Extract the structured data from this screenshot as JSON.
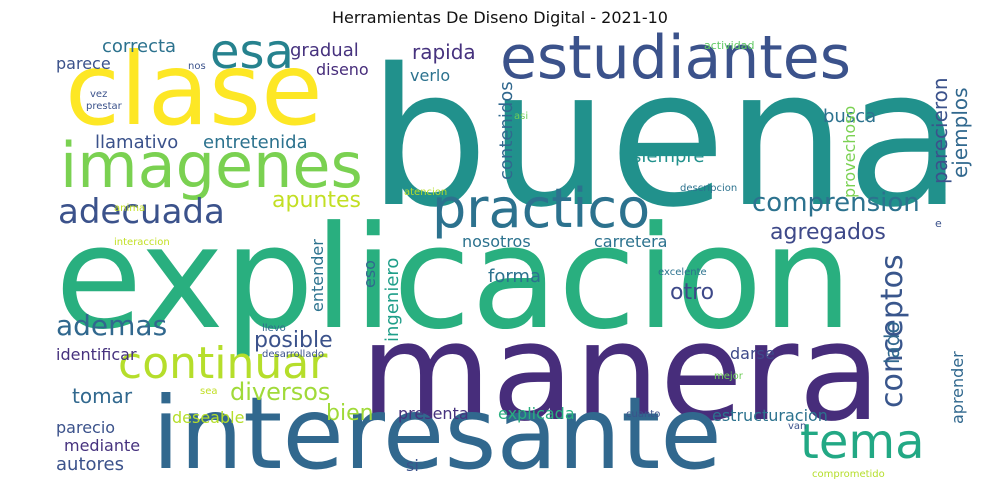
{
  "title": "Herramientas De Diseno Digital - 2021-10",
  "words": [
    {
      "text": "buena",
      "color": "#21918c"
    },
    {
      "text": "explicacion",
      "color": "#29af7f"
    },
    {
      "text": "manera",
      "color": "#472d7b"
    },
    {
      "text": "interesante",
      "color": "#31688e"
    },
    {
      "text": "clase",
      "color": "#fde725"
    },
    {
      "text": "estudiantes",
      "color": "#3b528b"
    },
    {
      "text": "imagenes",
      "color": "#7ad151"
    },
    {
      "text": "practico",
      "color": "#2c728e"
    },
    {
      "text": "esa",
      "color": "#26828e"
    },
    {
      "text": "tema",
      "color": "#22a884"
    },
    {
      "text": "continuar",
      "color": "#b5de2b"
    },
    {
      "text": "adecuada",
      "color": "#3b528b"
    },
    {
      "text": "comprension",
      "color": "#2c728e"
    },
    {
      "text": "conceptos",
      "color": "#39568c"
    },
    {
      "text": "ademas",
      "color": "#31688e"
    },
    {
      "text": "diversos",
      "color": "#a0da39"
    },
    {
      "text": "agregados",
      "color": "#3e4989"
    },
    {
      "text": "apuntes",
      "color": "#c2df23"
    },
    {
      "text": "posible",
      "color": "#3b528b"
    },
    {
      "text": "llamativo",
      "color": "#3b528b"
    },
    {
      "text": "entretenida",
      "color": "#2c728e"
    },
    {
      "text": "correcta",
      "color": "#2c728e"
    },
    {
      "text": "gradual",
      "color": "#46327e"
    },
    {
      "text": "rapida",
      "color": "#46327e"
    },
    {
      "text": "ejemplos",
      "color": "#31688e"
    },
    {
      "text": "parecieron",
      "color": "#3b528b"
    },
    {
      "text": "busca",
      "color": "#2c728e"
    },
    {
      "text": "siempre",
      "color": "#21918c"
    },
    {
      "text": "provechoso",
      "color": "#7ad151"
    },
    {
      "text": "contenidos",
      "color": "#31688e"
    },
    {
      "text": "verlo",
      "color": "#2c728e"
    },
    {
      "text": "diseno",
      "color": "#472d7b"
    },
    {
      "text": "parece",
      "color": "#3b528b"
    },
    {
      "text": "nos",
      "color": "#3b528b"
    },
    {
      "text": "actividad",
      "color": "#5ec962"
    },
    {
      "text": "vez",
      "color": "#3b528b"
    },
    {
      "text": "prestar",
      "color": "#3b528b"
    },
    {
      "text": "asi",
      "color": "#6ece58"
    },
    {
      "text": "atencion",
      "color": "#b5de2b"
    },
    {
      "text": "descripcion",
      "color": "#2c728e"
    },
    {
      "text": "anima",
      "color": "#c2df23"
    },
    {
      "text": "interaccion",
      "color": "#c2df23"
    },
    {
      "text": "e",
      "color": "#3b528b"
    },
    {
      "text": "nosotros",
      "color": "#2c728e"
    },
    {
      "text": "carretera",
      "color": "#2c728e"
    },
    {
      "text": "forma",
      "color": "#2c728e"
    },
    {
      "text": "otro",
      "color": "#3e4989"
    },
    {
      "text": "excelente",
      "color": "#2c728e"
    },
    {
      "text": "entender",
      "color": "#2c728e"
    },
    {
      "text": "eso",
      "color": "#31688e"
    },
    {
      "text": "ingeniero",
      "color": "#1f9e89"
    },
    {
      "text": "lado",
      "color": "#31688e"
    },
    {
      "text": "aprender",
      "color": "#31688e"
    },
    {
      "text": "darse",
      "color": "#3e4989"
    },
    {
      "text": "llevo",
      "color": "#31688e"
    },
    {
      "text": "desarrollado",
      "color": "#3b528b"
    },
    {
      "text": "mejor",
      "color": "#6ece58"
    },
    {
      "text": "identificar",
      "color": "#46327e"
    },
    {
      "text": "tomar",
      "color": "#31688e"
    },
    {
      "text": "sea",
      "color": "#c2df23"
    },
    {
      "text": "deseable",
      "color": "#b5de2b"
    },
    {
      "text": "bien",
      "color": "#a0da39"
    },
    {
      "text": "presenta",
      "color": "#46327e"
    },
    {
      "text": "explicada",
      "color": "#29af7f"
    },
    {
      "text": "estructuracion",
      "color": "#2c728e"
    },
    {
      "text": "cuanto",
      "color": "#3b528b"
    },
    {
      "text": "van",
      "color": "#3b528b"
    },
    {
      "text": "parecio",
      "color": "#3b528b"
    },
    {
      "text": "mediante",
      "color": "#46327e"
    },
    {
      "text": "autores",
      "color": "#3b528b"
    },
    {
      "text": "si",
      "color": "#3b528b"
    },
    {
      "text": "comprometido",
      "color": "#b5de2b"
    }
  ]
}
